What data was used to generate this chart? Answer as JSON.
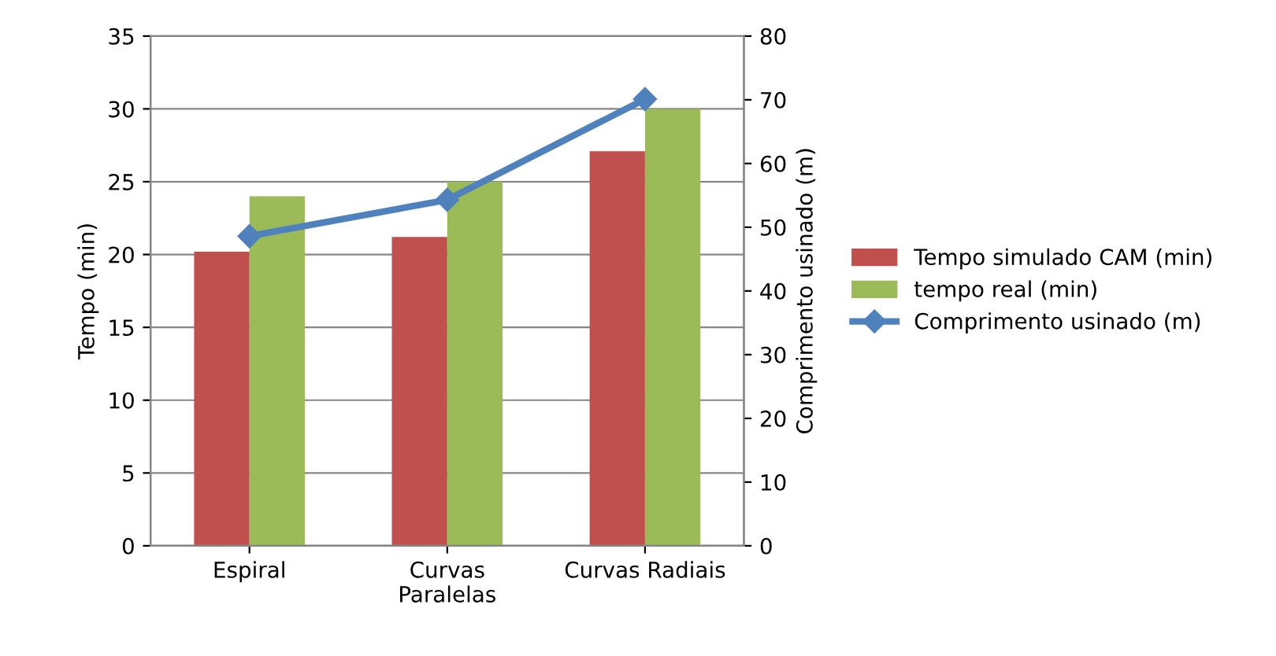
{
  "chart_data": {
    "type": "bar",
    "categories": [
      "Espiral",
      "Curvas\nParalelas",
      "Curvas Radiais"
    ],
    "series": [
      {
        "name": "Tempo simulado CAM (min)",
        "color": "#c0504d",
        "values": [
          20.2,
          21.2,
          27.1
        ]
      },
      {
        "name": "tempo real (min)",
        "color": "#9bbb59",
        "values": [
          24.0,
          25.0,
          30.0
        ]
      },
      {
        "name": "Comprimento usinado (m)",
        "color": "#4f81bd",
        "type": "line",
        "axis": "y2",
        "marker": "diamond",
        "values": [
          48.6,
          54.3,
          70.1
        ]
      }
    ],
    "ylabel": "Tempo (min)",
    "y2label": "Comprimento usinado (m)",
    "ylim": [
      0,
      35
    ],
    "yticks": [
      0,
      5,
      10,
      15,
      20,
      25,
      30,
      35
    ],
    "y2lim": [
      0,
      80
    ],
    "y2ticks": [
      0,
      10,
      20,
      30,
      40,
      50,
      60,
      70,
      80
    ],
    "grid": "y",
    "legend": "right"
  }
}
